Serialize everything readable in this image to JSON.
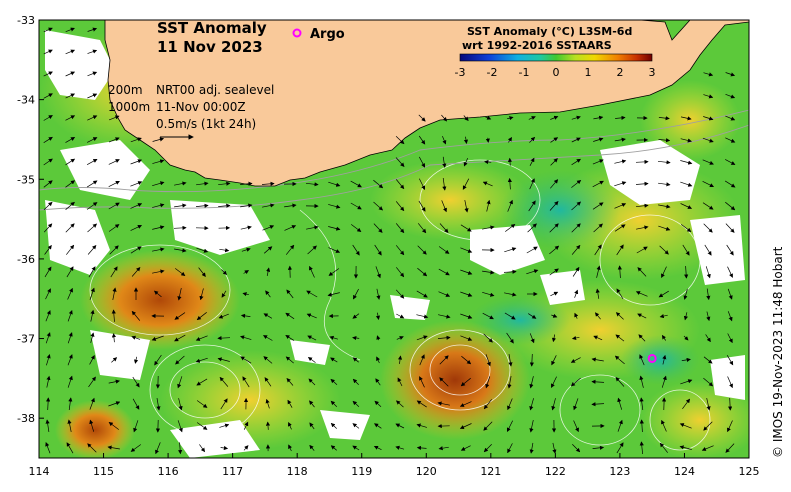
{
  "title": {
    "line1": "SST Anomaly",
    "line2": "11 Nov 2023"
  },
  "argo_legend": "Argo",
  "colorbar": {
    "title1": "SST Anomaly (°C) L3SM-6d",
    "title2": "wrt 1992-2016 SSTAARS",
    "ticks": [
      "-3",
      "-2",
      "-1",
      "0",
      "1",
      "2",
      "3"
    ],
    "min": -3,
    "max": 3
  },
  "info": {
    "contour1": "200m",
    "contour2": "1000m",
    "sealevel": "NRT00 adj. sealevel",
    "datetime": "11-Nov 00:00Z",
    "scale": "0.5m/s (1kt 24h)"
  },
  "axes": {
    "x_ticks": [
      "114",
      "115",
      "116",
      "117",
      "118",
      "119",
      "120",
      "121",
      "122",
      "123",
      "124",
      "125"
    ],
    "y_ticks": [
      "-33",
      "-34",
      "-35",
      "-36",
      "-37",
      "-38"
    ],
    "lon_range": [
      114,
      125
    ],
    "lat_range": [
      -38.5,
      -33
    ]
  },
  "argo_floats": [
    {
      "lon": 123.5,
      "lat": -37.25
    }
  ],
  "credit": "© IMOS 19-Nov-2023 11:48 Hobart",
  "colors": {
    "land": "#f9c99a",
    "argo": "#ff00ff",
    "ocean_base": "#5cc93a"
  }
}
